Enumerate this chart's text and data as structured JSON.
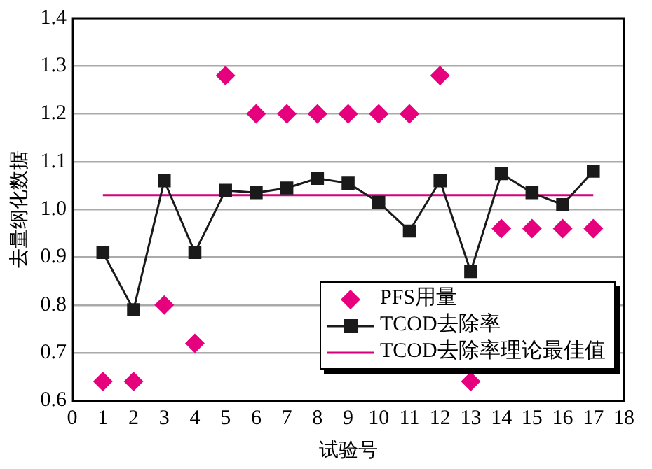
{
  "chart_data": {
    "type": "scatter",
    "xlabel": "试验号",
    "ylabel": "去量纲化数据",
    "xlim": [
      0,
      18
    ],
    "xticks": [
      0,
      1,
      2,
      3,
      4,
      5,
      6,
      7,
      8,
      9,
      10,
      11,
      12,
      13,
      14,
      15,
      16,
      17,
      18
    ],
    "ylim": [
      0.6,
      1.4
    ],
    "yticks": [
      0.6,
      0.7,
      0.8,
      0.9,
      {
        "value": 1,
        "label": "1.0"
      },
      1.1,
      1.2,
      1.3,
      1.4
    ],
    "x": [
      1,
      2,
      3,
      4,
      5,
      6,
      7,
      8,
      9,
      10,
      11,
      12,
      13,
      14,
      15,
      16,
      17
    ],
    "grid": "y",
    "legend": "bottom right",
    "series": [
      {
        "name": "PFS用量",
        "type": "scatter",
        "marker": "diamond",
        "color": "#e6007e",
        "values": [
          0.64,
          0.64,
          0.8,
          0.72,
          1.28,
          1.2,
          1.2,
          1.2,
          1.2,
          1.2,
          1.2,
          1.28,
          0.64,
          0.96,
          0.96,
          0.96,
          0.96
        ]
      },
      {
        "name": "TCOD去除率",
        "type": "line",
        "marker": "square",
        "color": "#1a1a1a",
        "values": [
          0.91,
          0.79,
          1.06,
          0.91,
          1.04,
          1.035,
          1.045,
          1.065,
          1.055,
          1.015,
          0.955,
          1.06,
          0.87,
          1.075,
          1.035,
          1.01,
          1.08
        ]
      },
      {
        "name": "TCOD去除率理论最佳值",
        "type": "line",
        "marker": "none",
        "color": "#d6007a",
        "x": [
          1,
          17
        ],
        "values": [
          1.03,
          1.03
        ]
      }
    ]
  }
}
